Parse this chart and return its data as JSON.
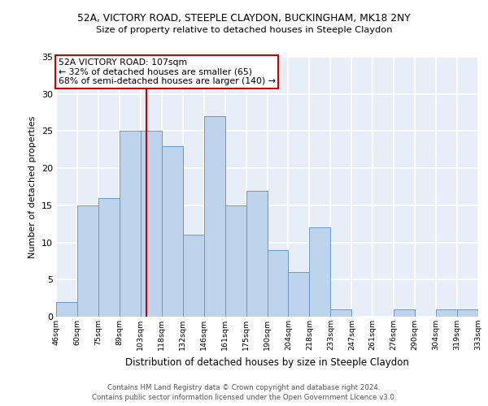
{
  "title1": "52A, VICTORY ROAD, STEEPLE CLAYDON, BUCKINGHAM, MK18 2NY",
  "title2": "Size of property relative to detached houses in Steeple Claydon",
  "xlabel": "Distribution of detached houses by size in Steeple Claydon",
  "ylabel": "Number of detached properties",
  "bar_values": [
    2,
    15,
    16,
    25,
    25,
    23,
    11,
    27,
    15,
    17,
    9,
    6,
    12,
    1,
    0,
    0,
    1,
    0,
    1,
    1
  ],
  "bar_labels": [
    "46sqm",
    "60sqm",
    "75sqm",
    "89sqm",
    "103sqm",
    "118sqm",
    "132sqm",
    "146sqm",
    "161sqm",
    "175sqm",
    "190sqm",
    "204sqm",
    "218sqm",
    "233sqm",
    "247sqm",
    "261sqm",
    "276sqm",
    "290sqm",
    "304sqm",
    "319sqm",
    "333sqm"
  ],
  "bar_color": "#bdd4ec",
  "bar_edge_color": "#6699cc",
  "background_color": "#e8eef7",
  "grid_color": "#ffffff",
  "annotation_text": "52A VICTORY ROAD: 107sqm\n← 32% of detached houses are smaller (65)\n68% of semi-detached houses are larger (140) →",
  "annotation_box_color": "#ffffff",
  "annotation_box_edge": "#cc0000",
  "vline_color": "#cc0000",
  "ylim": [
    0,
    35
  ],
  "yticks": [
    0,
    5,
    10,
    15,
    20,
    25,
    30,
    35
  ],
  "footer1": "Contains HM Land Registry data © Crown copyright and database right 2024.",
  "footer2": "Contains public sector information licensed under the Open Government Licence v3.0."
}
